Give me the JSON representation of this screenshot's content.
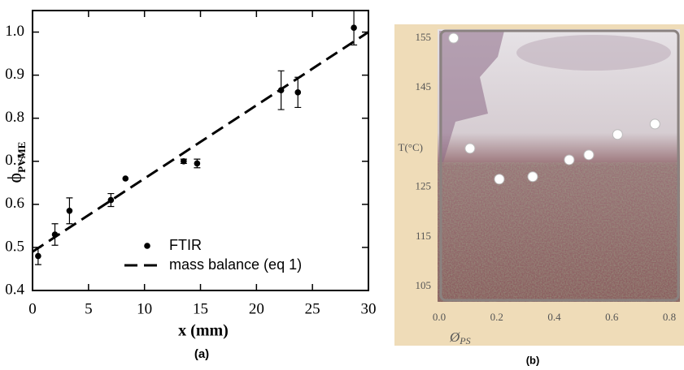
{
  "chart_data": [
    {
      "type": "scatter",
      "caption": "(a)",
      "x_label": "x (mm)",
      "y_label": "ϕ",
      "y_label_subscript": "PVME",
      "xlim": [
        0,
        30
      ],
      "ylim": [
        0.4,
        1.05
      ],
      "xticks": [
        0,
        5,
        10,
        15,
        20,
        25,
        30
      ],
      "yticks": [
        0.4,
        0.5,
        0.6,
        0.7,
        0.8,
        0.9,
        {
          "value": 1,
          "label": "1.0"
        }
      ],
      "legend": "lower right",
      "series": [
        {
          "name": "FTIR",
          "style": "markers",
          "color": "#000000",
          "x": [
            0.5,
            2,
            3.3,
            7,
            8.3,
            13.5,
            14.7,
            22.2,
            23.7,
            28.7
          ],
          "values": [
            0.48,
            0.53,
            0.585,
            0.61,
            0.66,
            0.7,
            0.695,
            0.865,
            0.86,
            1.01
          ],
          "errors": [
            0.02,
            0.025,
            0.03,
            0.015,
            null,
            0.005,
            0.01,
            0.045,
            0.035,
            0.04
          ]
        },
        {
          "name": "mass balance (eq 1)",
          "style": "dashed",
          "color": "#000000",
          "x": [
            0,
            30
          ],
          "values": [
            0.49,
            1.0
          ]
        }
      ]
    },
    {
      "type": "scatter",
      "caption": "(b)",
      "x_label": "Ø",
      "x_label_subscript": "PS",
      "y_label": "T(°C)",
      "xlim": [
        0,
        0.8
      ],
      "ylim": [
        105,
        155
      ],
      "xticks": [
        {
          "value": 0,
          "label": "0.0"
        },
        0.2,
        0.4,
        0.6,
        0.8
      ],
      "yticks": [
        105,
        115,
        125,
        145,
        155
      ],
      "series": [
        {
          "style": "markers",
          "color": "#ffffff",
          "x": [
            0.05,
            0.107,
            0.209,
            0.325,
            0.452,
            0.52,
            0.62,
            0.75
          ],
          "values": [
            155,
            132.8,
            126.6,
            127.1,
            130.5,
            131.5,
            135.6,
            137.7
          ]
        }
      ]
    }
  ]
}
